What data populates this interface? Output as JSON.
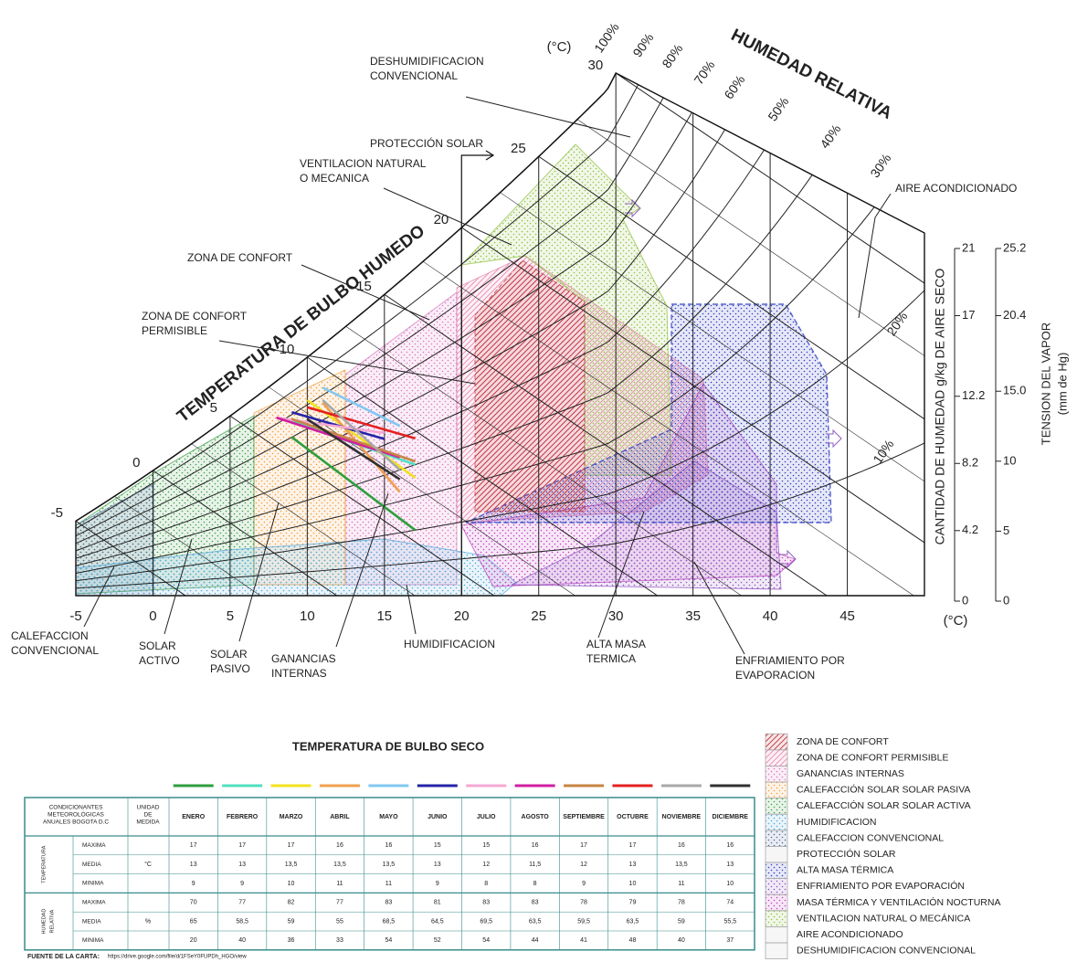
{
  "chart": {
    "top_unit": "(°C)",
    "bottom_unit": "(°C)",
    "rh_title": "HUMEDAD RELATIVA",
    "wb_title": "TEMPERATURA DE BULBO HUMEDO",
    "xlim": [
      -5,
      50
    ],
    "xticks": [
      -5,
      0,
      5,
      10,
      15,
      20,
      25,
      30,
      35,
      40,
      45
    ],
    "wet_bulb_ticks": [
      -5,
      0,
      5,
      10,
      15,
      20,
      25,
      30
    ],
    "rh_ticks": [
      {
        "value": 100,
        "label": "100%"
      },
      {
        "value": 90,
        "label": "90%"
      },
      {
        "value": 80,
        "label": "80%"
      },
      {
        "value": 70,
        "label": "70%"
      },
      {
        "value": 60,
        "label": "60%"
      },
      {
        "value": 50,
        "label": "50%"
      },
      {
        "value": 40,
        "label": "40%"
      },
      {
        "value": 30,
        "label": "30%"
      },
      {
        "value": 20,
        "label": "20%"
      },
      {
        "value": 10,
        "label": "10%"
      }
    ],
    "humidity_axis": {
      "title": "CANTIDAD DE HUMEDAD g/kg DE AIRE SECO",
      "lim": [
        0,
        21
      ],
      "ticks": [
        0,
        4.2,
        8.2,
        12.2,
        17,
        21
      ]
    },
    "vapor_axis": {
      "title": [
        "TENSION DEL VAPOR",
        "(mm de Hg)"
      ],
      "lim": [
        0,
        25.2
      ],
      "ticks": [
        0,
        5,
        10,
        {
          "value": 15,
          "label": "15.0"
        },
        20.4,
        25.2
      ]
    },
    "callouts": [
      {
        "lines": [
          "DESHUMIDIFICACION",
          "CONVENCIONAL"
        ]
      },
      {
        "lines": [
          "PROTECCIÓN SOLAR"
        ]
      },
      {
        "lines": [
          "VENTILACION NATURAL",
          "O MECANICA"
        ]
      },
      {
        "lines": [
          "ZONA DE CONFORT"
        ]
      },
      {
        "lines": [
          "ZONA DE CONFORT",
          "PERMISIBLE"
        ]
      },
      {
        "lines": [
          "AIRE ACONDICIONADO"
        ]
      },
      {
        "lines": [
          "CALEFACCION",
          "CONVENCIONAL"
        ]
      },
      {
        "lines": [
          "SOLAR",
          "ACTIVO"
        ]
      },
      {
        "lines": [
          "SOLAR",
          "PASIVO"
        ]
      },
      {
        "lines": [
          "GANANCIAS",
          "INTERNAS"
        ]
      },
      {
        "lines": [
          "HUMIDIFICACION"
        ]
      },
      {
        "lines": [
          "ALTA MASA",
          "TERMICA"
        ]
      },
      {
        "lines": [
          "ENFRIAMIENTO POR",
          "EVAPORACION"
        ]
      }
    ]
  },
  "table": {
    "title": "TEMPERATURA DE BULBO SECO",
    "header": {
      "condition": [
        "CONDICIONANTES",
        "METEOROLÓGICAS",
        "ANUALES BOGOTA D.C"
      ],
      "unit": [
        "UNIDAD",
        "DE",
        "MEDIDA"
      ]
    },
    "months": [
      {
        "name": "ENERO",
        "color": "#2e9e3e"
      },
      {
        "name": "FEBRERO",
        "color": "#4fe0c0"
      },
      {
        "name": "MARZO",
        "color": "#f2e21e"
      },
      {
        "name": "ABRIL",
        "color": "#f0a050"
      },
      {
        "name": "MAYO",
        "color": "#80c8f0"
      },
      {
        "name": "JUNIO",
        "color": "#2424a8"
      },
      {
        "name": "JULIO",
        "color": "#f4a8d4"
      },
      {
        "name": "AGOSTO",
        "color": "#d01ea0"
      },
      {
        "name": "SEPTIEMBRE",
        "color": "#c88444"
      },
      {
        "name": "OCTUBRE",
        "color": "#e42020"
      },
      {
        "name": "NOVIEMBRE",
        "color": "#a8a8a8"
      },
      {
        "name": "DICIEMBRE",
        "color": "#303030"
      }
    ],
    "groups": [
      {
        "name": [
          "TEMPERATURA"
        ],
        "unit": "°C",
        "rows": [
          {
            "label": "MAXIMA",
            "cells": [
              "17",
              "17",
              "17",
              "16",
              "16",
              "15",
              "15",
              "16",
              "17",
              "17",
              "16",
              "16"
            ]
          },
          {
            "label": "MEDIA",
            "cells": [
              "13",
              "13",
              "13,5",
              "13,5",
              "13,5",
              "13",
              "12",
              "11,5",
              "12",
              "13",
              "13,5",
              "13"
            ]
          },
          {
            "label": "MINIMA",
            "cells": [
              "9",
              "9",
              "10",
              "11",
              "11",
              "9",
              "8",
              "8",
              "9",
              "10",
              "11",
              "10"
            ]
          }
        ]
      },
      {
        "name": [
          "HUMEDAD",
          "RELATIVA"
        ],
        "unit": "%",
        "rows": [
          {
            "label": "MAXIMA",
            "cells": [
              "70",
              "77",
              "82",
              "77",
              "83",
              "81",
              "83",
              "83",
              "78",
              "79",
              "78",
              "74"
            ]
          },
          {
            "label": "MEDIA",
            "cells": [
              "65",
              "58,5",
              "59",
              "55",
              "68,5",
              "64,5",
              "69,5",
              "63,5",
              "59,5",
              "63,5",
              "59",
              "55,5"
            ]
          },
          {
            "label": "MINIMA",
            "cells": [
              "20",
              "40",
              "36",
              "33",
              "54",
              "52",
              "54",
              "44",
              "41",
              "48",
              "40",
              "37"
            ]
          }
        ]
      }
    ]
  },
  "source": {
    "label": "FUENTE DE LA CARTA:",
    "url": "https://drive.google.com/file/d/1FSeY0FUPDh_HGO/view"
  },
  "legend": {
    "items": [
      {
        "label": "ZONA DE CONFORT",
        "color": "#c0303a"
      },
      {
        "label": "ZONA DE CONFORT PERMISIBLE",
        "color": "#e888b0"
      },
      {
        "label": "GANANCIAS INTERNAS",
        "color": "#d878c0"
      },
      {
        "label": "CALEFACCIÓN SOLAR SOLAR PASIVA",
        "color": "#f0a040"
      },
      {
        "label": "CALEFACCIÓN SOLAR SOLAR ACTIVA",
        "color": "#40a048"
      },
      {
        "label": "HUMIDIFICACION",
        "color": "#50a8d8"
      },
      {
        "label": "CALEFACCION CONVENCIONAL",
        "color": "#5070a0"
      },
      {
        "label": "PROTECCIÓN SOLAR",
        "color": "#bbbbbb"
      },
      {
        "label": "ALTA MASA TÉRMICA",
        "color": "#3040c0"
      },
      {
        "label": "ENFRIAMIENTO POR EVAPORACIÓN",
        "color": "#9050c0"
      },
      {
        "label": "MASA TÉRMICA Y VENTILACIÓN NOCTURNA",
        "color": "#c040c0"
      },
      {
        "label": "VENTILACION NATURAL O MECÁNICA",
        "color": "#90c040"
      },
      {
        "label": "AIRE ACONDICIONADO",
        "color": "#bbbbbb"
      },
      {
        "label": "DESHUMIDIFICACION CONVENCIONAL",
        "color": "#bbbbbb"
      }
    ]
  }
}
